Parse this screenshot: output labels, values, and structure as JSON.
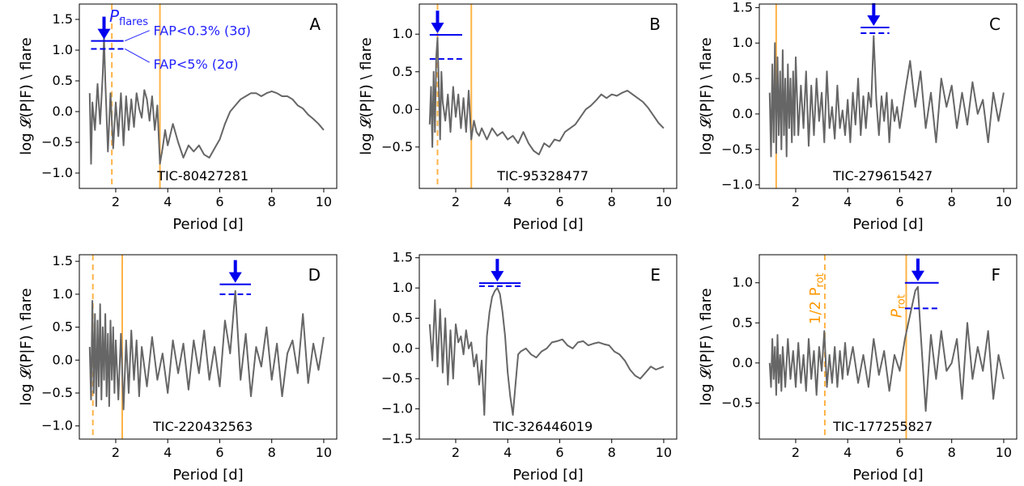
{
  "colors": {
    "periodogram": "#666666",
    "flares": "#0000ee",
    "rotation": "#ffb347",
    "annotation_text": "#2222ff",
    "rot_label": "#ff9900"
  },
  "annotations": {
    "pflares_main": "P",
    "pflares_sub": "flares",
    "fap3_label": "FAP<0.3% (3σ)",
    "fap5_label": "FAP<5% (2σ)",
    "prot_main": "P",
    "prot_sub": "rot",
    "half_prot_main": "1/2 P",
    "half_prot_sub": "rot"
  },
  "chart_data": [
    {
      "type": "line",
      "panel": "A",
      "tic_label": "TIC-80427281",
      "xlabel": "Period [d]",
      "ylabel": "log 𝓛(P|F) \\ flare",
      "xlim": [
        0.6,
        10.5
      ],
      "ylim": [
        -1.25,
        1.75
      ],
      "xticks": [
        2,
        4,
        6,
        8,
        10
      ],
      "yticks": [
        -1.0,
        -0.5,
        0.0,
        0.5,
        1.0,
        1.5
      ],
      "ytick_labels": [
        "−1.0",
        "−0.5",
        "0.0",
        "0.5",
        "1.0",
        "1.5"
      ],
      "rot_solid": 3.7,
      "rot_dashed": 1.85,
      "flare_period": 1.55,
      "fap3": 1.15,
      "fap5": 1.02,
      "fap_x": [
        1.05,
        2.3
      ],
      "series": [
        {
          "x": [
            1.0,
            1.05,
            1.1,
            1.2,
            1.3,
            1.4,
            1.5,
            1.55,
            1.6,
            1.7,
            1.8,
            1.9,
            2.0,
            2.1,
            2.2,
            2.3,
            2.4,
            2.5,
            2.6,
            2.7,
            2.8,
            2.9,
            3.0,
            3.1,
            3.2,
            3.3,
            3.4,
            3.5,
            3.6,
            3.7,
            3.8,
            3.9,
            4.0,
            4.2,
            4.4,
            4.6,
            4.8,
            5.0,
            5.2,
            5.4,
            5.6,
            5.8,
            6.0,
            6.2,
            6.4,
            6.6,
            6.8,
            7.0,
            7.2,
            7.4,
            7.6,
            7.8,
            8.0,
            8.2,
            8.4,
            8.6,
            8.8,
            9.0,
            9.2,
            9.4,
            9.6,
            9.8,
            10.0
          ],
          "y": [
            0.3,
            -0.85,
            0.15,
            -0.3,
            0.45,
            -0.2,
            0.6,
            1.2,
            0.5,
            -0.65,
            0.3,
            -0.6,
            0.15,
            -0.4,
            0.3,
            -0.55,
            0.25,
            -0.3,
            0.2,
            -0.25,
            0.3,
            0.05,
            -0.1,
            0.35,
            0.2,
            -0.15,
            0.25,
            -0.3,
            0.1,
            -0.85,
            -0.6,
            -0.3,
            -0.55,
            -0.2,
            -0.5,
            -0.75,
            -0.55,
            -0.65,
            -0.55,
            -0.7,
            -0.75,
            -0.6,
            -0.45,
            -0.2,
            0.0,
            0.1,
            0.2,
            0.25,
            0.3,
            0.3,
            0.25,
            0.3,
            0.33,
            0.3,
            0.25,
            0.25,
            0.2,
            0.1,
            0.05,
            -0.05,
            -0.12,
            -0.2,
            -0.3
          ]
        }
      ]
    },
    {
      "type": "line",
      "panel": "B",
      "tic_label": "TIC-95328477",
      "xlabel": "Period [d]",
      "ylabel": "log 𝓛(P|F) \\ flare",
      "xlim": [
        0.6,
        10.5
      ],
      "ylim": [
        -1.05,
        1.4
      ],
      "xticks": [
        2,
        4,
        6,
        8,
        10
      ],
      "yticks": [
        -0.5,
        0.0,
        0.5,
        1.0
      ],
      "ytick_labels": [
        "−0.5",
        "0.0",
        "0.5",
        "1.0"
      ],
      "rot_solid": 2.6,
      "rot_dashed": 1.3,
      "flare_period": 1.3,
      "fap3": 0.99,
      "fap5": 0.67,
      "fap_x": [
        1.0,
        2.25
      ],
      "series": [
        {
          "x": [
            1.0,
            1.05,
            1.1,
            1.15,
            1.2,
            1.25,
            1.3,
            1.35,
            1.4,
            1.45,
            1.5,
            1.6,
            1.7,
            1.8,
            1.9,
            2.0,
            2.1,
            2.2,
            2.3,
            2.4,
            2.5,
            2.6,
            2.7,
            2.8,
            2.9,
            3.0,
            3.2,
            3.4,
            3.6,
            3.8,
            4.0,
            4.2,
            4.4,
            4.6,
            4.8,
            5.0,
            5.2,
            5.4,
            5.6,
            5.8,
            6.0,
            6.2,
            6.4,
            6.6,
            6.8,
            7.0,
            7.2,
            7.4,
            7.6,
            7.8,
            8.0,
            8.2,
            8.4,
            8.6,
            8.8,
            9.0,
            9.2,
            9.4,
            9.6,
            9.8,
            10.0
          ],
          "y": [
            -0.2,
            0.3,
            -0.5,
            0.5,
            -0.3,
            0.7,
            0.95,
            0.3,
            -0.4,
            0.5,
            0.1,
            -0.15,
            0.2,
            -0.3,
            0.3,
            -0.1,
            0.2,
            -0.25,
            0.15,
            -0.3,
            0.25,
            -0.4,
            -0.15,
            -0.3,
            -0.35,
            -0.25,
            -0.4,
            -0.25,
            -0.35,
            -0.3,
            -0.4,
            -0.35,
            -0.45,
            -0.3,
            -0.45,
            -0.55,
            -0.6,
            -0.45,
            -0.5,
            -0.4,
            -0.42,
            -0.3,
            -0.25,
            -0.2,
            -0.1,
            0.0,
            0.05,
            0.12,
            0.2,
            0.15,
            0.2,
            0.18,
            0.22,
            0.25,
            0.2,
            0.15,
            0.1,
            0.02,
            -0.08,
            -0.18,
            -0.25
          ]
        }
      ]
    },
    {
      "type": "line",
      "panel": "C",
      "tic_label": "TIC-279615427",
      "xlabel": "Period [d]",
      "ylabel": "log 𝓛(P|F) \\ flare",
      "xlim": [
        0.6,
        10.5
      ],
      "ylim": [
        -1.05,
        1.55
      ],
      "xticks": [
        2,
        4,
        6,
        8,
        10
      ],
      "yticks": [
        -1.0,
        -0.5,
        0.0,
        0.5,
        1.0,
        1.5
      ],
      "ytick_labels": [
        "−1.0",
        "−0.5",
        "0.0",
        "0.5",
        "1.0",
        "1.5"
      ],
      "rot_solid": 1.25,
      "rot_dashed": null,
      "flare_period": 5.0,
      "fap3": 1.22,
      "fap5": 1.14,
      "fap_x": [
        4.5,
        5.6
      ],
      "series": [
        {
          "x": [
            1.0,
            1.05,
            1.1,
            1.15,
            1.2,
            1.25,
            1.3,
            1.35,
            1.4,
            1.45,
            1.5,
            1.55,
            1.6,
            1.65,
            1.7,
            1.75,
            1.8,
            1.85,
            1.9,
            1.95,
            2.0,
            2.1,
            2.2,
            2.3,
            2.4,
            2.5,
            2.6,
            2.7,
            2.8,
            2.9,
            3.0,
            3.1,
            3.2,
            3.3,
            3.4,
            3.5,
            3.6,
            3.7,
            3.8,
            3.9,
            4.0,
            4.1,
            4.2,
            4.3,
            4.4,
            4.5,
            4.6,
            4.7,
            4.8,
            4.9,
            5.0,
            5.1,
            5.2,
            5.3,
            5.4,
            5.5,
            5.6,
            5.7,
            5.8,
            5.9,
            6.0,
            6.2,
            6.4,
            6.6,
            6.8,
            7.0,
            7.2,
            7.4,
            7.6,
            7.8,
            8.0,
            8.2,
            8.4,
            8.6,
            8.8,
            9.0,
            9.2,
            9.4,
            9.6,
            9.8,
            10.0
          ],
          "y": [
            0.3,
            -0.6,
            0.7,
            -0.4,
            1.0,
            -0.55,
            0.8,
            -0.3,
            0.6,
            -0.5,
            0.9,
            -0.3,
            0.5,
            -0.6,
            0.7,
            -0.2,
            0.5,
            -0.4,
            0.6,
            -0.3,
            0.8,
            -0.3,
            0.4,
            -0.2,
            0.6,
            -0.45,
            0.4,
            -0.3,
            0.5,
            -0.1,
            0.3,
            -0.4,
            0.6,
            -0.2,
            0.1,
            -0.35,
            0.4,
            -0.2,
            0.05,
            -0.3,
            0.2,
            -0.4,
            0.3,
            -0.15,
            0.5,
            -0.3,
            0.25,
            -0.2,
            0.3,
            0.1,
            1.1,
            0.2,
            -0.3,
            0.25,
            -0.1,
            0.3,
            -0.4,
            0.2,
            -0.1,
            0.1,
            -0.2,
            0.3,
            0.75,
            0.1,
            0.6,
            -0.2,
            0.3,
            -0.4,
            0.5,
            0.1,
            0.4,
            -0.2,
            0.3,
            -0.15,
            0.45,
            0.0,
            0.2,
            -0.4,
            0.3,
            -0.1,
            0.3
          ]
        }
      ]
    },
    {
      "type": "line",
      "panel": "D",
      "tic_label": "TIC-220432563",
      "xlabel": "Period [d]",
      "ylabel": "log 𝓛(P|F) \\ flare",
      "xlim": [
        0.6,
        10.5
      ],
      "ylim": [
        -1.2,
        1.6
      ],
      "xticks": [
        2,
        4,
        6,
        8,
        10
      ],
      "yticks": [
        -1.0,
        -0.5,
        0.0,
        0.5,
        1.0,
        1.5
      ],
      "ytick_labels": [
        "−1.0",
        "−0.5",
        "0.0",
        "0.5",
        "1.0",
        "1.5"
      ],
      "rot_solid": 2.25,
      "rot_dashed": 1.12,
      "flare_period": 6.6,
      "fap3": 1.15,
      "fap5": 1.0,
      "fap_x": [
        6.0,
        7.2
      ],
      "series": [
        {
          "x": [
            1.0,
            1.05,
            1.1,
            1.15,
            1.2,
            1.25,
            1.3,
            1.35,
            1.4,
            1.45,
            1.5,
            1.55,
            1.6,
            1.65,
            1.7,
            1.75,
            1.8,
            1.85,
            1.9,
            1.95,
            2.0,
            2.1,
            2.2,
            2.3,
            2.4,
            2.5,
            2.6,
            2.7,
            2.8,
            2.9,
            3.0,
            3.2,
            3.4,
            3.6,
            3.8,
            4.0,
            4.2,
            4.4,
            4.6,
            4.8,
            5.0,
            5.2,
            5.4,
            5.6,
            5.8,
            6.0,
            6.2,
            6.4,
            6.6,
            6.8,
            7.0,
            7.2,
            7.4,
            7.6,
            7.8,
            8.0,
            8.2,
            8.4,
            8.6,
            8.8,
            9.0,
            9.2,
            9.4,
            9.6,
            9.8,
            10.0
          ],
          "y": [
            0.2,
            -0.6,
            0.9,
            -0.5,
            0.7,
            -0.7,
            0.6,
            -0.4,
            0.85,
            -0.6,
            0.5,
            -0.3,
            0.7,
            -0.55,
            0.4,
            -0.7,
            0.6,
            -0.3,
            0.5,
            -0.5,
            0.3,
            -0.6,
            0.4,
            -0.75,
            0.3,
            -0.5,
            0.45,
            -0.3,
            0.3,
            -0.55,
            0.2,
            -0.4,
            0.35,
            -0.3,
            0.1,
            -0.5,
            0.3,
            -0.2,
            0.25,
            -0.45,
            0.3,
            -0.2,
            0.45,
            -0.3,
            0.2,
            -0.4,
            0.6,
            0.1,
            1.05,
            -0.3,
            0.4,
            -0.55,
            0.2,
            -0.1,
            0.5,
            -0.3,
            0.25,
            -0.55,
            0.1,
            0.3,
            -0.2,
            0.7,
            -0.35,
            0.25,
            -0.15,
            0.35
          ]
        }
      ]
    },
    {
      "type": "line",
      "panel": "E",
      "tic_label": "TIC-326446019",
      "xlabel": "Period [d]",
      "ylabel": "",
      "xlim": [
        0.6,
        10.5
      ],
      "ylim": [
        -1.5,
        1.55
      ],
      "xticks": [
        2,
        4,
        6,
        8,
        10
      ],
      "yticks": [
        -1.5,
        -1.0,
        -0.5,
        0.0,
        0.5,
        1.0,
        1.5
      ],
      "ytick_labels": [
        "−1.5",
        "−1.0",
        "−0.5",
        "0.0",
        "0.5",
        "1.0",
        "1.5"
      ],
      "rot_solid": null,
      "rot_dashed": null,
      "flare_period": 3.6,
      "fap3": 1.08,
      "fap5": 1.03,
      "fap_x": [
        2.9,
        4.5
      ],
      "series": [
        {
          "x": [
            1.0,
            1.1,
            1.2,
            1.3,
            1.4,
            1.5,
            1.6,
            1.7,
            1.8,
            1.9,
            2.0,
            2.1,
            2.2,
            2.3,
            2.4,
            2.5,
            2.6,
            2.7,
            2.8,
            2.9,
            3.0,
            3.1,
            3.2,
            3.3,
            3.4,
            3.5,
            3.6,
            3.7,
            3.8,
            3.9,
            4.0,
            4.1,
            4.2,
            4.3,
            4.4,
            4.5,
            4.7,
            4.9,
            5.1,
            5.3,
            5.5,
            5.7,
            5.9,
            6.1,
            6.3,
            6.5,
            6.7,
            6.9,
            7.1,
            7.3,
            7.5,
            7.7,
            7.9,
            8.1,
            8.3,
            8.5,
            8.7,
            8.9,
            9.1,
            9.3,
            9.5,
            9.7,
            10.0
          ],
          "y": [
            0.4,
            -0.2,
            0.8,
            -0.3,
            0.65,
            -0.4,
            0.5,
            -0.6,
            0.3,
            -0.5,
            0.4,
            0.1,
            0.2,
            -0.1,
            0.3,
            0.0,
            0.1,
            -0.3,
            -0.1,
            -0.6,
            -0.2,
            -1.1,
            0.2,
            0.6,
            0.85,
            0.95,
            1.0,
            0.9,
            0.6,
            0.2,
            -0.4,
            -0.8,
            -1.1,
            -0.6,
            -0.1,
            -0.05,
            0.0,
            -0.1,
            -0.15,
            -0.05,
            0.0,
            0.1,
            0.12,
            0.15,
            0.05,
            0.0,
            0.1,
            0.12,
            0.05,
            0.08,
            0.1,
            0.07,
            0.05,
            -0.05,
            -0.1,
            -0.2,
            -0.35,
            -0.45,
            -0.5,
            -0.4,
            -0.3,
            -0.35,
            -0.3
          ]
        }
      ]
    },
    {
      "type": "line",
      "panel": "F",
      "tic_label": "TIC-177255827",
      "xlabel": "Period [d]",
      "ylabel": "log 𝓛(P|F) \\ flare",
      "xlim": [
        0.6,
        10.5
      ],
      "ylim": [
        -0.95,
        1.35
      ],
      "xticks": [
        2,
        4,
        6,
        8,
        10
      ],
      "yticks": [
        -0.5,
        0.0,
        0.5,
        1.0
      ],
      "ytick_labels": [
        "−0.5",
        "0.0",
        "0.5",
        "1.0"
      ],
      "rot_solid": 6.25,
      "rot_dashed": 3.12,
      "flare_period": 6.7,
      "fap3": 1.0,
      "fap5": 0.68,
      "fap_x": [
        6.2,
        7.5
      ],
      "series": [
        {
          "x": [
            1.0,
            1.05,
            1.1,
            1.15,
            1.2,
            1.25,
            1.3,
            1.35,
            1.4,
            1.45,
            1.5,
            1.6,
            1.7,
            1.8,
            1.9,
            2.0,
            2.1,
            2.2,
            2.3,
            2.4,
            2.5,
            2.6,
            2.7,
            2.8,
            2.9,
            3.0,
            3.1,
            3.2,
            3.3,
            3.4,
            3.5,
            3.6,
            3.7,
            3.8,
            3.9,
            4.0,
            4.2,
            4.4,
            4.6,
            4.8,
            5.0,
            5.2,
            5.4,
            5.6,
            5.8,
            6.0,
            6.2,
            6.4,
            6.6,
            6.7,
            6.8,
            7.0,
            7.2,
            7.4,
            7.6,
            7.8,
            8.0,
            8.2,
            8.4,
            8.6,
            8.8,
            9.0,
            9.2,
            9.4,
            9.6,
            9.8,
            10.0
          ],
          "y": [
            0.0,
            -0.3,
            0.3,
            -0.2,
            0.2,
            -0.4,
            0.35,
            -0.25,
            0.1,
            -0.35,
            0.2,
            -0.3,
            0.3,
            -0.2,
            0.15,
            -0.3,
            0.25,
            -0.25,
            0.1,
            -0.35,
            0.3,
            -0.2,
            0.15,
            -0.4,
            0.2,
            -0.1,
            0.4,
            -0.3,
            0.1,
            -0.25,
            0.2,
            -0.3,
            0.15,
            -0.2,
            0.25,
            -0.15,
            0.2,
            -0.25,
            0.1,
            -0.3,
            0.3,
            -0.15,
            0.15,
            -0.35,
            0.1,
            -0.1,
            0.3,
            0.6,
            0.9,
            0.95,
            0.4,
            -0.6,
            0.35,
            -0.2,
            0.4,
            -0.1,
            0.0,
            0.3,
            -0.45,
            0.5,
            -0.2,
            0.2,
            -0.1,
            0.4,
            -0.45,
            0.1,
            -0.2
          ]
        }
      ]
    }
  ]
}
